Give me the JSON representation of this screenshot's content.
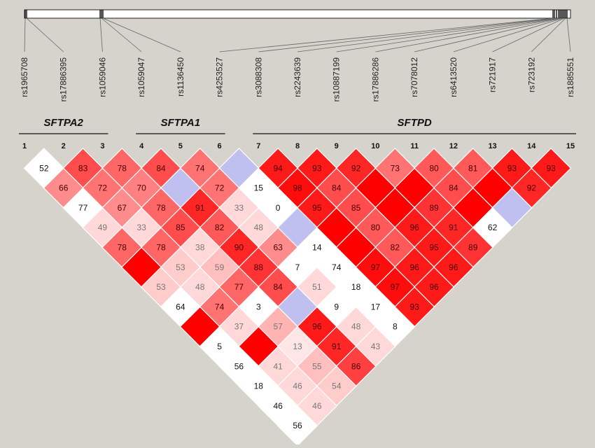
{
  "colors": {
    "background": "#d6d3cc",
    "strong_ld": "#ff0000",
    "weak_ld": "#ffffff",
    "high_lod_low_dprime": "#c0c0f0"
  },
  "snps": [
    {
      "index": "1",
      "name": "rs1965708"
    },
    {
      "index": "2",
      "name": "rs17886395"
    },
    {
      "index": "3",
      "name": "rs1059046"
    },
    {
      "index": "4",
      "name": "rs1059047"
    },
    {
      "index": "5",
      "name": "rs1136450"
    },
    {
      "index": "6",
      "name": "rs4253527"
    },
    {
      "index": "7",
      "name": "rs3088308"
    },
    {
      "index": "8",
      "name": "rs2243639"
    },
    {
      "index": "9",
      "name": "rs10887199"
    },
    {
      "index": "10",
      "name": "rs17886286"
    },
    {
      "index": "11",
      "name": "rs7078012"
    },
    {
      "index": "12",
      "name": "rs6413520"
    },
    {
      "index": "13",
      "name": "rs721917"
    },
    {
      "index": "14",
      "name": "rs723192"
    },
    {
      "index": "15",
      "name": "rs1885551"
    }
  ],
  "genes": [
    {
      "name": "SFTPA2",
      "from": 1,
      "to": 3
    },
    {
      "name": "SFTPA1",
      "from": 4,
      "to": 6
    },
    {
      "name": "SFTPD",
      "from": 7,
      "to": 15
    }
  ],
  "ld_matrix": {
    "note_on_cells": "row d = distance between SNPs (1 = adjacent); values are D' x 100, empty string = 100 (no number shown); intensity 0-1",
    "rows": [
      [
        {
          "v": "52",
          "c": 0
        },
        {
          "v": "83",
          "c": 0.7
        },
        {
          "v": "78",
          "c": 0.6
        },
        {
          "v": "84",
          "c": 0.7
        },
        {
          "v": "74",
          "c": 0.55
        },
        {
          "v": "",
          "c": -1
        },
        {
          "v": "94",
          "c": 0.9
        },
        {
          "v": "93",
          "c": 0.9
        },
        {
          "v": "92",
          "c": 0.85
        },
        {
          "v": "73",
          "c": 0.55
        },
        {
          "v": "80",
          "c": 0.65
        },
        {
          "v": "81",
          "c": 0.65
        },
        {
          "v": "93",
          "c": 0.9
        },
        {
          "v": "93",
          "c": 0.9
        }
      ],
      [
        {
          "v": "66",
          "c": 0.45
        },
        {
          "v": "72",
          "c": 0.55
        },
        {
          "v": "70",
          "c": 0.5
        },
        {
          "v": "",
          "c": -1
        },
        {
          "v": "72",
          "c": 0.55
        },
        {
          "v": "15",
          "c": 0
        },
        {
          "v": "98",
          "c": 0.95
        },
        {
          "v": "84",
          "c": 0.7
        },
        {
          "v": "",
          "c": 1
        },
        {
          "v": "",
          "c": 1
        },
        {
          "v": "84",
          "c": 0.7
        },
        {
          "v": "",
          "c": 1
        },
        {
          "v": "92",
          "c": 0.85
        }
      ],
      [
        {
          "v": "77",
          "c": 0
        },
        {
          "v": "67",
          "c": 0.45
        },
        {
          "v": "78",
          "c": 0.6
        },
        {
          "v": "91",
          "c": 0.85
        },
        {
          "v": "33",
          "c": 0.15
        },
        {
          "v": "0",
          "c": 0
        },
        {
          "v": "95",
          "c": 0.9
        },
        {
          "v": "85",
          "c": 0.7
        },
        {
          "v": "",
          "c": 1
        },
        {
          "v": "89",
          "c": 0.8
        },
        {
          "v": "",
          "c": 1
        },
        {
          "v": "",
          "c": -1
        }
      ],
      [
        {
          "v": "49",
          "c": 0.15
        },
        {
          "v": "33",
          "c": 0.15
        },
        {
          "v": "85",
          "c": 0.7
        },
        {
          "v": "82",
          "c": 0.65
        },
        {
          "v": "48",
          "c": 0.15
        },
        {
          "v": "",
          "c": -1
        },
        {
          "v": "",
          "c": 1
        },
        {
          "v": "80",
          "c": 0.65
        },
        {
          "v": "96",
          "c": 0.9
        },
        {
          "v": "91",
          "c": 0.85
        },
        {
          "v": "62",
          "c": 0
        }
      ],
      [
        {
          "v": "78",
          "c": 0.6
        },
        {
          "v": "78",
          "c": 0.6
        },
        {
          "v": "38",
          "c": 0.15
        },
        {
          "v": "90",
          "c": 0.85
        },
        {
          "v": "63",
          "c": 0.45
        },
        {
          "v": "14",
          "c": 0
        },
        {
          "v": "",
          "c": 1
        },
        {
          "v": "82",
          "c": 0.65
        },
        {
          "v": "95",
          "c": 0.9
        },
        {
          "v": "89",
          "c": 0.8
        }
      ],
      [
        {
          "v": "",
          "c": 1
        },
        {
          "v": "53",
          "c": 0.2
        },
        {
          "v": "59",
          "c": 0.25
        },
        {
          "v": "88",
          "c": 0.8
        },
        {
          "v": "7",
          "c": 0
        },
        {
          "v": "74",
          "c": 0
        },
        {
          "v": "97",
          "c": 0.95
        },
        {
          "v": "96",
          "c": 0.9
        },
        {
          "v": "96",
          "c": 0.9
        }
      ],
      [
        {
          "v": "53",
          "c": 0.2
        },
        {
          "v": "48",
          "c": 0.15
        },
        {
          "v": "77",
          "c": 0.6
        },
        {
          "v": "84",
          "c": 0.7
        },
        {
          "v": "51",
          "c": 0.15
        },
        {
          "v": "18",
          "c": 0
        },
        {
          "v": "97",
          "c": 0.95
        },
        {
          "v": "96",
          "c": 0.9
        }
      ],
      [
        {
          "v": "64",
          "c": 0
        },
        {
          "v": "74",
          "c": 0.55
        },
        {
          "v": "3",
          "c": 0
        },
        {
          "v": "",
          "c": -1
        },
        {
          "v": "9",
          "c": 0
        },
        {
          "v": "17",
          "c": 0
        },
        {
          "v": "93",
          "c": 0.9
        }
      ],
      [
        {
          "v": "",
          "c": 1
        },
        {
          "v": "37",
          "c": 0.15
        },
        {
          "v": "57",
          "c": 0.3
        },
        {
          "v": "96",
          "c": 0.9
        },
        {
          "v": "48",
          "c": 0.15
        },
        {
          "v": "8",
          "c": 0
        }
      ],
      [
        {
          "v": "5",
          "c": 0
        },
        {
          "v": "",
          "c": 1
        },
        {
          "v": "13",
          "c": 0.1
        },
        {
          "v": "91",
          "c": 0.85
        },
        {
          "v": "43",
          "c": 0.15
        }
      ],
      [
        {
          "v": "56",
          "c": 0
        },
        {
          "v": "41",
          "c": 0.15
        },
        {
          "v": "55",
          "c": 0.25
        },
        {
          "v": "86",
          "c": 0.75
        }
      ],
      [
        {
          "v": "18",
          "c": 0
        },
        {
          "v": "46",
          "c": 0.15
        },
        {
          "v": "54",
          "c": 0.2
        }
      ],
      [
        {
          "v": "46",
          "c": 0
        },
        {
          "v": "46",
          "c": 0.15
        }
      ],
      [
        {
          "v": "56",
          "c": 0
        }
      ]
    ]
  }
}
